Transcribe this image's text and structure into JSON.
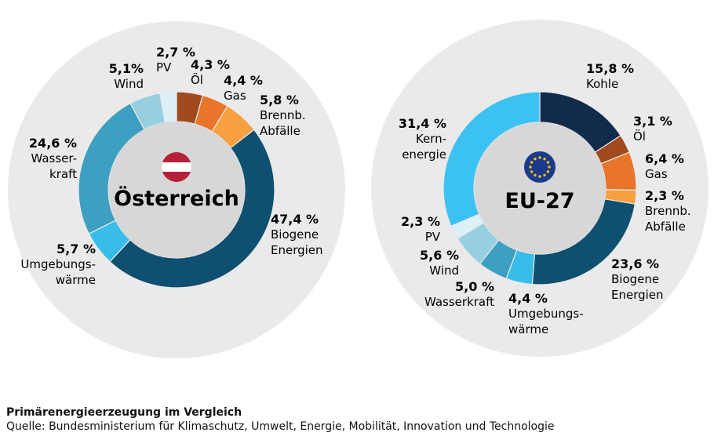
{
  "colors": {
    "bg_circle": "#eaeaea",
    "center": "#d7d7d7",
    "flag_red": "#b5203a",
    "eu_blue": "#1c3a8c",
    "eu_star": "#f2c200"
  },
  "footer": {
    "title": "Primärenergieerzeugung im Vergleich",
    "source": "Quelle: Bundesministerium für Klimaschutz, Umwelt, Energie, Mobilität, Innovation und Technologie"
  },
  "chart_data": [
    {
      "type": "pie",
      "variant": "donut",
      "title": "Österreich",
      "icon": "austria-flag-icon",
      "slices": [
        {
          "id": "oel",
          "value": 4.3,
          "value_label": "4,3 %",
          "label": [
            "Öl"
          ],
          "color": "#a04a1d"
        },
        {
          "id": "gas",
          "value": 4.4,
          "value_label": "4,4 %",
          "label": [
            "Gas"
          ],
          "color": "#e8752a"
        },
        {
          "id": "abfaelle",
          "value": 5.8,
          "value_label": "5,8 %",
          "label": [
            "Brennb.",
            "Abfälle"
          ],
          "color": "#f7a040"
        },
        {
          "id": "biogene",
          "value": 47.4,
          "value_label": "47,4 %",
          "label": [
            "Biogene",
            "Energien"
          ],
          "color": "#0f4f6f"
        },
        {
          "id": "umgebung",
          "value": 5.7,
          "value_label": "5,7 %",
          "label": [
            "Umgebungs-",
            "wärme"
          ],
          "color": "#37bde8"
        },
        {
          "id": "wasserkraft",
          "value": 24.6,
          "value_label": "24,6 %",
          "label": [
            "Wasser-",
            "kraft"
          ],
          "color": "#3d9fc1"
        },
        {
          "id": "wind",
          "value": 5.1,
          "value_label": "5,1%",
          "label": [
            "Wind"
          ],
          "color": "#96cfe0"
        },
        {
          "id": "pv",
          "value": 2.7,
          "value_label": "2,7 %",
          "label": [
            "PV"
          ],
          "color": "#dcf0f6"
        }
      ]
    },
    {
      "type": "pie",
      "variant": "donut",
      "title": "EU-27",
      "icon": "eu-flag-icon",
      "slices": [
        {
          "id": "kohle",
          "value": 15.8,
          "value_label": "15,8 %",
          "label": [
            "Kohle"
          ],
          "color": "#132b4a"
        },
        {
          "id": "oel",
          "value": 3.1,
          "value_label": "3,1 %",
          "label": [
            "Öl"
          ],
          "color": "#a04a1d"
        },
        {
          "id": "gas",
          "value": 6.4,
          "value_label": "6,4 %",
          "label": [
            "Gas"
          ],
          "color": "#e8752a"
        },
        {
          "id": "abfaelle",
          "value": 2.3,
          "value_label": "2,3 %",
          "label": [
            "Brennb.",
            "Abfälle"
          ],
          "color": "#f7a040"
        },
        {
          "id": "biogene",
          "value": 23.6,
          "value_label": "23,6 %",
          "label": [
            "Biogene",
            "Energien"
          ],
          "color": "#0f4f6f"
        },
        {
          "id": "umgebung",
          "value": 4.4,
          "value_label": "4,4 %",
          "label": [
            "Umgebungs-",
            "wärme"
          ],
          "color": "#37bde8"
        },
        {
          "id": "wasserkraft",
          "value": 5.0,
          "value_label": "5,0 %",
          "label": [
            "Wasserkraft"
          ],
          "color": "#3d9fc1"
        },
        {
          "id": "wind",
          "value": 5.6,
          "value_label": "5,6 %",
          "label": [
            "Wind"
          ],
          "color": "#96cfe0"
        },
        {
          "id": "pv",
          "value": 2.3,
          "value_label": "2,3 %",
          "label": [
            "PV"
          ],
          "color": "#dcf0f6"
        },
        {
          "id": "kernenergie",
          "value": 31.4,
          "value_label": "31,4 %",
          "label": [
            "Kern-",
            "energie"
          ],
          "color": "#3cc2f2"
        }
      ]
    }
  ]
}
